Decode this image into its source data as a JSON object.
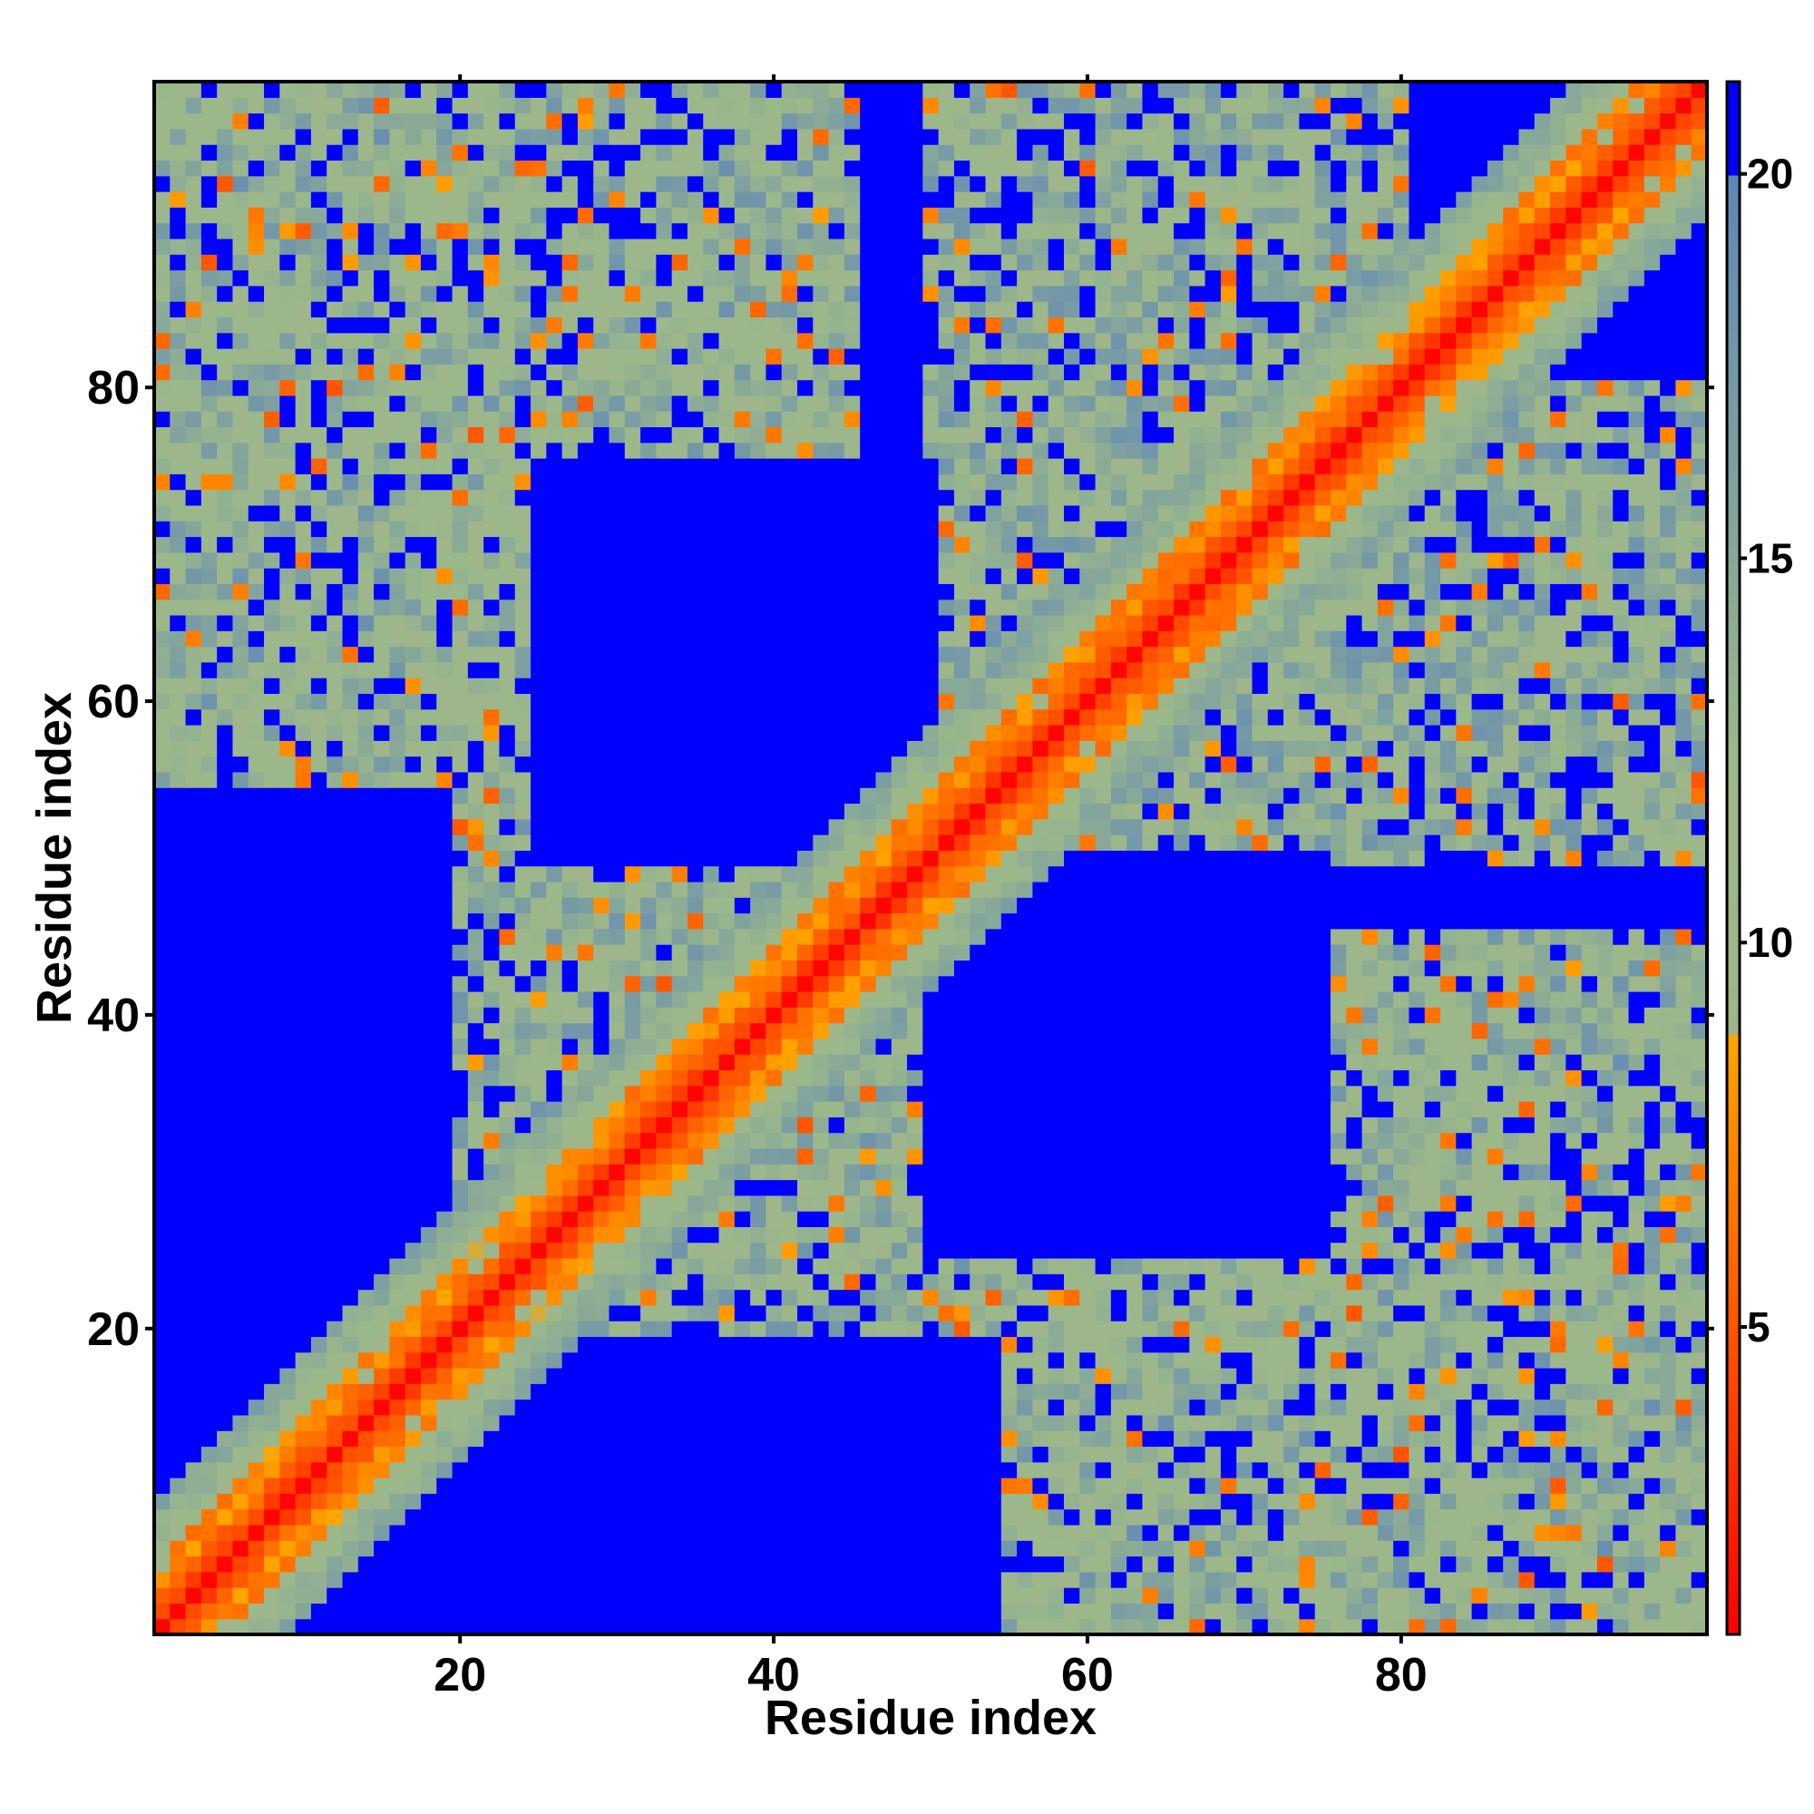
{
  "chart_data": {
    "type": "heatmap",
    "title": "",
    "xlabel": "Residue index",
    "ylabel": "Residue index",
    "x_range": [
      1,
      99
    ],
    "y_range": [
      1,
      99
    ],
    "x_ticks": [
      20,
      40,
      60,
      80
    ],
    "y_ticks": [
      20,
      40,
      60,
      80
    ],
    "colorbar": {
      "ticks": [
        5,
        10,
        15,
        20
      ],
      "range": [
        1.0,
        21.2
      ],
      "stops": [
        {
          "value": 1.0,
          "color": "#ff0000"
        },
        {
          "value": 8.8,
          "color": "#ffa500"
        },
        {
          "value": 8.81,
          "color": "#9fb58a"
        },
        {
          "value": 12.5,
          "color": "#9bb88a"
        },
        {
          "value": 20.0,
          "color": "#5f86b8"
        },
        {
          "value": 20.01,
          "color": "#0000ff"
        },
        {
          "value": 21.2,
          "color": "#0000ff"
        }
      ]
    },
    "value_description": "Symmetric residue-residue distance map; red/orange = short distances along the diagonal and contacts, blue = beyond cutoff",
    "structure": {
      "diagonal_band": {
        "core_value": 1.5,
        "width_residues": 4
      },
      "off_diagonal_contact_blocks": [
        {
          "x": [
            1,
            45
          ],
          "y": [
            55,
            99
          ],
          "mean": 14.5
        },
        {
          "x": [
            55,
            99
          ],
          "y": [
            1,
            45
          ],
          "mean": 14.5
        },
        {
          "x": [
            25,
            60
          ],
          "y": [
            20,
            50
          ],
          "mean": 13.5
        },
        {
          "x": [
            60,
            99
          ],
          "y": [
            50,
            80
          ],
          "mean": 13.5
        }
      ],
      "empty_regions": [
        {
          "x": [
            25,
            50
          ],
          "y": [
            50,
            72
          ]
        },
        {
          "x": [
            50,
            75
          ],
          "y": [
            25,
            50
          ]
        }
      ]
    }
  }
}
